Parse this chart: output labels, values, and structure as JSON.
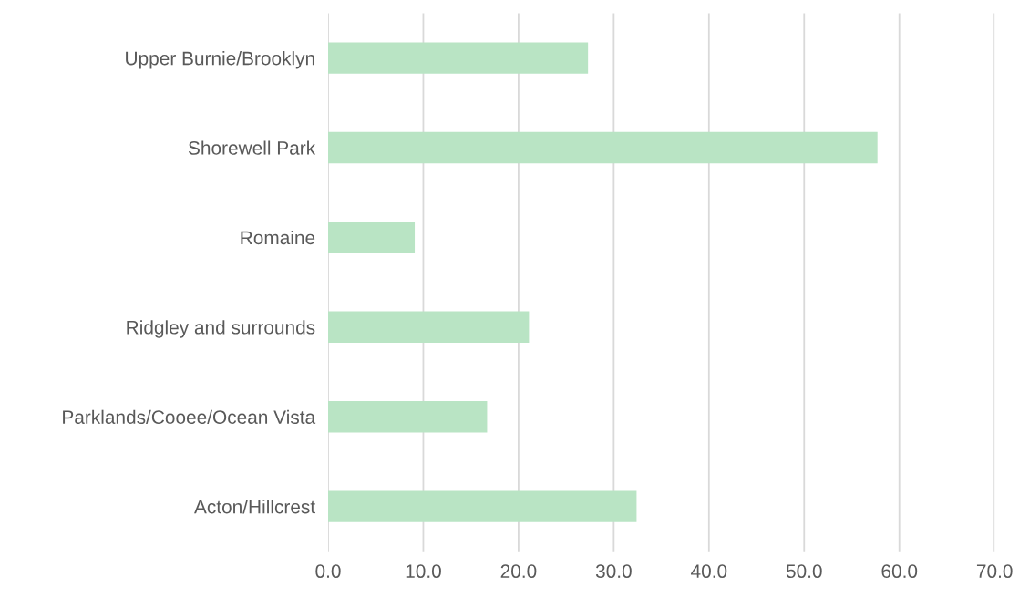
{
  "chart_data": {
    "type": "bar",
    "orientation": "horizontal",
    "categories": [
      "Upper Burnie/Brooklyn",
      "Shorewell Park",
      "Romaine",
      "Ridgley and surrounds",
      "Parklands/Cooee/Ocean Vista",
      "Acton/Hillcrest"
    ],
    "values": [
      27.3,
      57.7,
      9.1,
      21.1,
      16.7,
      32.4
    ],
    "color": "#b9e4c4",
    "xlim": [
      0,
      70
    ],
    "xticks": [
      {
        "value": 0,
        "label": "0.0"
      },
      {
        "value": 10,
        "label": "10.0"
      },
      {
        "value": 20,
        "label": "20.0"
      },
      {
        "value": 30,
        "label": "30.0"
      },
      {
        "value": 40,
        "label": "40.0"
      },
      {
        "value": 50,
        "label": "50.0"
      },
      {
        "value": 60,
        "label": "60.0"
      },
      {
        "value": 70,
        "label": "70.0"
      }
    ],
    "grid": "x",
    "legend": false
  }
}
